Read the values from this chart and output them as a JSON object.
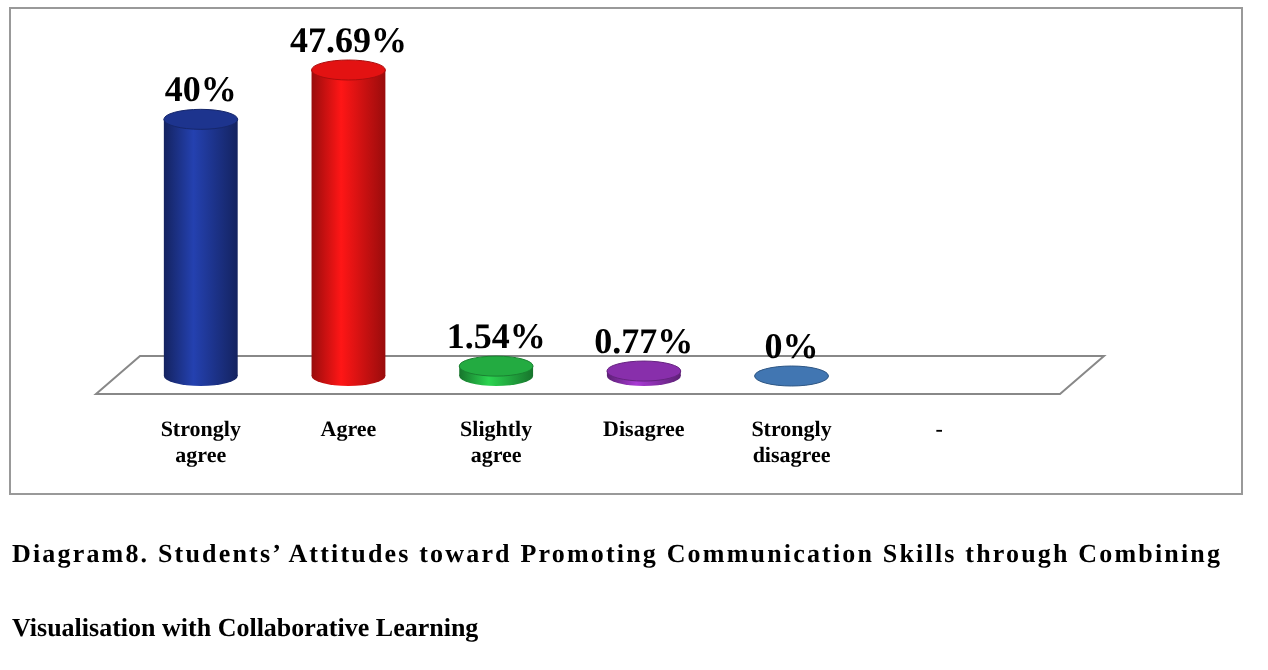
{
  "chart_data": {
    "type": "bar",
    "title": "Diagram8. Students’ Attitudes toward Promoting Communication Skills through Combining Visualisation with Collaborative Learning",
    "categories": [
      "Strongly agree",
      "Agree",
      "Slightly agree",
      "Disagree",
      "Strongly disagree",
      "-"
    ],
    "values": [
      40,
      47.69,
      1.54,
      0.77,
      0,
      null
    ],
    "value_labels": [
      "40%",
      "47.69%",
      "1.54%",
      "0.77%",
      "0%",
      null
    ],
    "colors": [
      "#1a2f80",
      "#cc1010",
      "#1f9a3a",
      "#7a2a9a",
      "#3a6aa0",
      null
    ]
  }
}
